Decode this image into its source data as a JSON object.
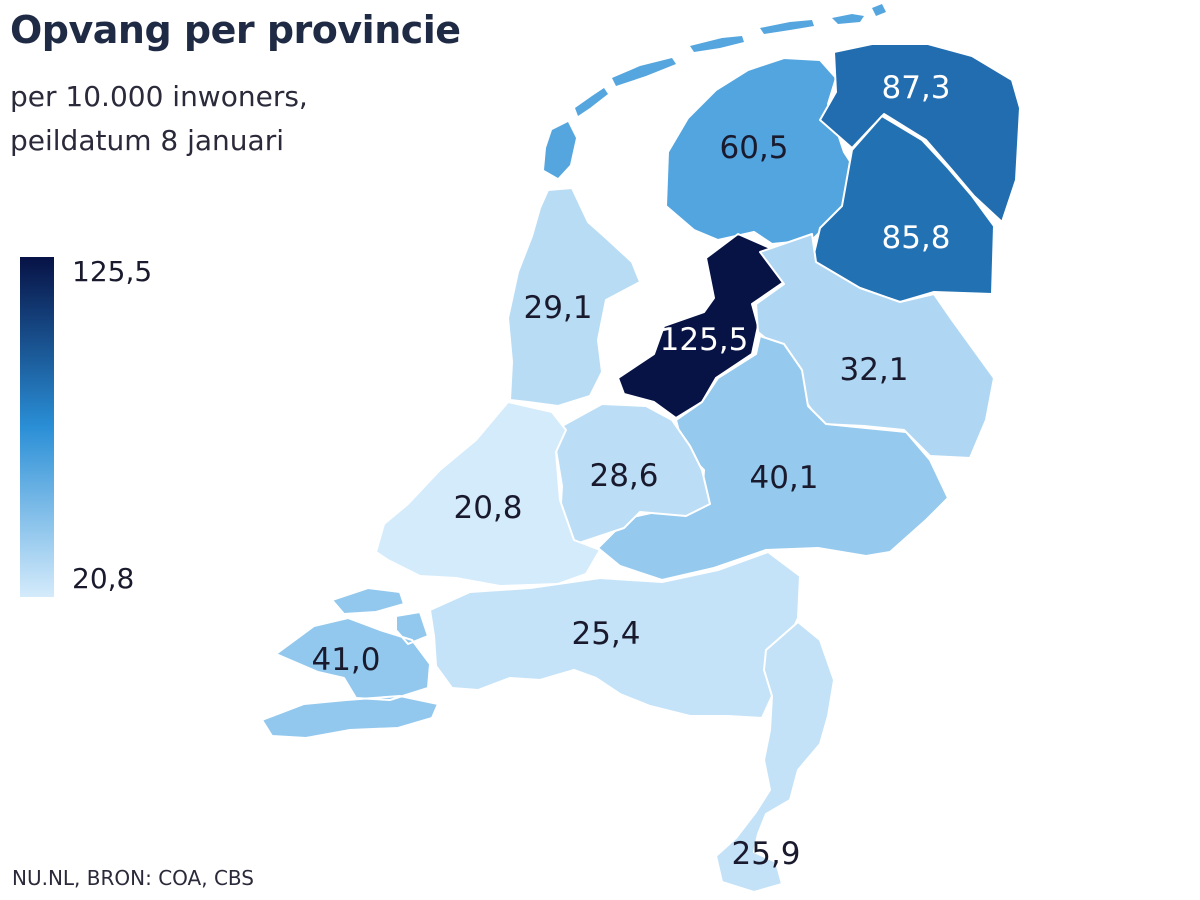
{
  "title": "Opvang per provincie",
  "subtitle_lines": [
    "per 10.000 inwoners,",
    "peildatum 8 januari"
  ],
  "legend": {
    "max_label": "125,5",
    "min_label": "20,8",
    "max_value": 125.5,
    "min_value": 20.8,
    "color_max": "#071245",
    "color_mid": "#2a8fd6",
    "color_min": "#d4ebfb"
  },
  "source": "NU.NL, BRON: COA, CBS",
  "colors": {
    "border": "#ffffff",
    "water": "#d4ebfb",
    "label_dark": "#1a1a2e",
    "label_light": "#ffffff"
  },
  "provinces": [
    {
      "id": "groningen",
      "value": 87.3,
      "label": "87,3"
    },
    {
      "id": "friesland",
      "value": 60.5,
      "label": "60,5"
    },
    {
      "id": "drenthe",
      "value": 85.8,
      "label": "85,8"
    },
    {
      "id": "overijssel",
      "value": 32.1,
      "label": "32,1"
    },
    {
      "id": "flevoland",
      "value": 125.5,
      "label": "125,5"
    },
    {
      "id": "gelderland",
      "value": 40.1,
      "label": "40,1"
    },
    {
      "id": "utrecht",
      "value": 28.6,
      "label": "28,6"
    },
    {
      "id": "noord-holland",
      "value": 29.1,
      "label": "29,1"
    },
    {
      "id": "zuid-holland",
      "value": 20.8,
      "label": "20,8"
    },
    {
      "id": "zeeland",
      "value": 41.0,
      "label": "41,0"
    },
    {
      "id": "noord-brabant",
      "value": 25.4,
      "label": "25,4"
    },
    {
      "id": "limburg",
      "value": 25.9,
      "label": "25,9"
    }
  ]
}
